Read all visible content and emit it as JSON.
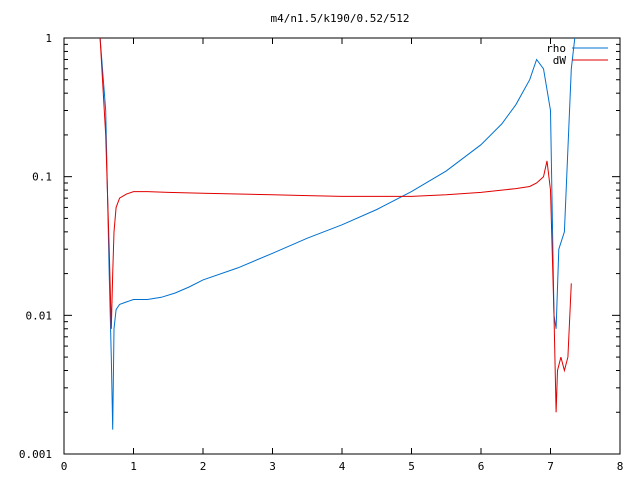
{
  "chart_data": {
    "type": "line",
    "title": "m4/n1.5/k190/0.52/512",
    "xlabel": "",
    "ylabel": "",
    "xlim": [
      0,
      8
    ],
    "ylim": [
      0.001,
      1
    ],
    "yscale": "log",
    "grid": false,
    "legend_position": "top-right",
    "x_ticks": [
      0,
      1,
      2,
      3,
      4,
      5,
      6,
      7,
      8
    ],
    "x_tick_labels": [
      "0",
      "1",
      "2",
      "3",
      "4",
      "5",
      "6",
      "7",
      "8"
    ],
    "y_ticks": [
      0.001,
      0.01,
      0.1,
      1
    ],
    "y_tick_labels": [
      "0.001",
      "0.01",
      "0.1",
      "1"
    ],
    "series": [
      {
        "name": "rho",
        "color": "#0070d0",
        "x": [
          0.52,
          0.6,
          0.65,
          0.68,
          0.7,
          0.72,
          0.75,
          0.8,
          0.9,
          1.0,
          1.2,
          1.4,
          1.6,
          1.8,
          2.0,
          2.5,
          3.0,
          3.5,
          4.0,
          4.5,
          5.0,
          5.5,
          6.0,
          6.3,
          6.5,
          6.7,
          6.8,
          6.9,
          7.0,
          7.05,
          7.08,
          7.12,
          7.2,
          7.3,
          7.35
        ],
        "values": [
          1.0,
          0.3,
          0.02,
          0.005,
          0.0015,
          0.008,
          0.011,
          0.012,
          0.0125,
          0.013,
          0.013,
          0.0135,
          0.0145,
          0.016,
          0.018,
          0.022,
          0.028,
          0.036,
          0.045,
          0.058,
          0.078,
          0.11,
          0.17,
          0.24,
          0.33,
          0.5,
          0.7,
          0.6,
          0.3,
          0.01,
          0.008,
          0.03,
          0.04,
          0.6,
          1.0
        ]
      },
      {
        "name": "dW",
        "color": "#e00000",
        "x": [
          0.52,
          0.6,
          0.65,
          0.68,
          0.7,
          0.72,
          0.75,
          0.8,
          0.9,
          1.0,
          1.2,
          1.5,
          2.0,
          2.5,
          3.0,
          3.5,
          4.0,
          4.5,
          5.0,
          5.5,
          6.0,
          6.3,
          6.5,
          6.7,
          6.8,
          6.9,
          6.95,
          7.0,
          7.05,
          7.08,
          7.1,
          7.15,
          7.2,
          7.25,
          7.3
        ],
        "values": [
          1.0,
          0.2,
          0.03,
          0.008,
          0.02,
          0.04,
          0.06,
          0.07,
          0.075,
          0.078,
          0.078,
          0.077,
          0.076,
          0.075,
          0.074,
          0.073,
          0.072,
          0.072,
          0.072,
          0.074,
          0.077,
          0.08,
          0.082,
          0.085,
          0.09,
          0.1,
          0.13,
          0.08,
          0.01,
          0.002,
          0.004,
          0.005,
          0.004,
          0.005,
          0.017
        ]
      }
    ]
  }
}
